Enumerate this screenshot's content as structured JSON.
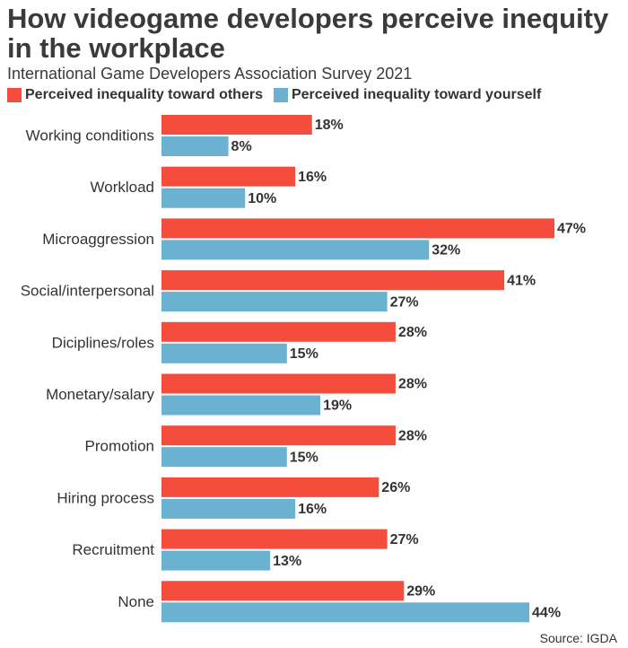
{
  "title": "How videogame developers perceive inequity in the workplace",
  "subtitle": "International Game Developers Association Survey 2021",
  "source": "Source: IGDA",
  "colors": {
    "others": "#f54d3d",
    "yourself": "#6ab2cf"
  },
  "chart_data": {
    "type": "bar",
    "orientation": "horizontal",
    "title": "How videogame developers perceive inequity in the workplace",
    "subtitle": "International Game Developers Association Survey 2021",
    "categories": [
      "Working conditions",
      "Workload",
      "Microaggression",
      "Social/interpersonal",
      "Diciplines/roles",
      "Monetary/salary",
      "Promotion",
      "Hiring process",
      "Recruitment",
      "None"
    ],
    "series": [
      {
        "name": "Perceived inequality toward others",
        "color": "#f54d3d",
        "values": [
          18,
          16,
          47,
          41,
          28,
          28,
          28,
          26,
          27,
          29
        ]
      },
      {
        "name": "Perceived inequality toward yourself",
        "color": "#6ab2cf",
        "values": [
          8,
          10,
          32,
          27,
          15,
          19,
          15,
          16,
          13,
          44
        ]
      }
    ],
    "value_suffix": "%",
    "xlim": [
      0,
      47
    ],
    "grid": false,
    "legend_position": "top"
  }
}
